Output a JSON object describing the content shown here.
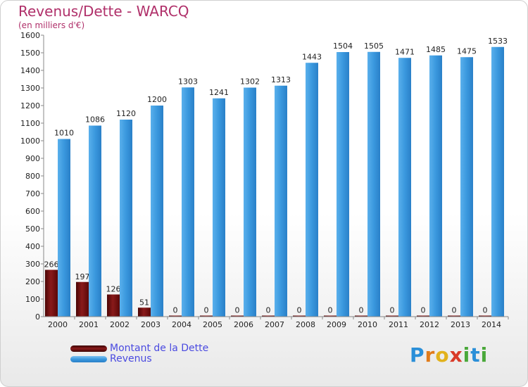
{
  "chart_data": {
    "type": "bar",
    "title": "Revenus/Dette - WARCQ",
    "subtitle": "(en milliers d'€)",
    "categories": [
      "2000",
      "2001",
      "2002",
      "2003",
      "2004",
      "2005",
      "2006",
      "2007",
      "2008",
      "2009",
      "2010",
      "2011",
      "2012",
      "2013",
      "2014"
    ],
    "series": [
      {
        "name": "Montant de la Dette",
        "color": "#7a1010",
        "values": [
          266,
          197,
          126,
          51,
          0,
          0,
          0,
          0,
          0,
          0,
          0,
          0,
          0,
          0,
          0
        ]
      },
      {
        "name": "Revenus",
        "color": "#3f9be0",
        "values": [
          1010,
          1086,
          1120,
          1200,
          1303,
          1241,
          1302,
          1313,
          1443,
          1504,
          1505,
          1471,
          1485,
          1475,
          1533
        ]
      }
    ],
    "ylim": [
      0,
      1600
    ],
    "ytick_step": 100,
    "grid": false,
    "legend": "bottom-left"
  },
  "logo": {
    "letters": [
      "P",
      "r",
      "o",
      "x",
      "i",
      "t",
      "i"
    ],
    "colors": [
      "#2a8fd8",
      "#e07b1a",
      "#e2b21c",
      "#d93a28",
      "#4aa83a",
      "#2a8fd8",
      "#4aa83a"
    ]
  }
}
